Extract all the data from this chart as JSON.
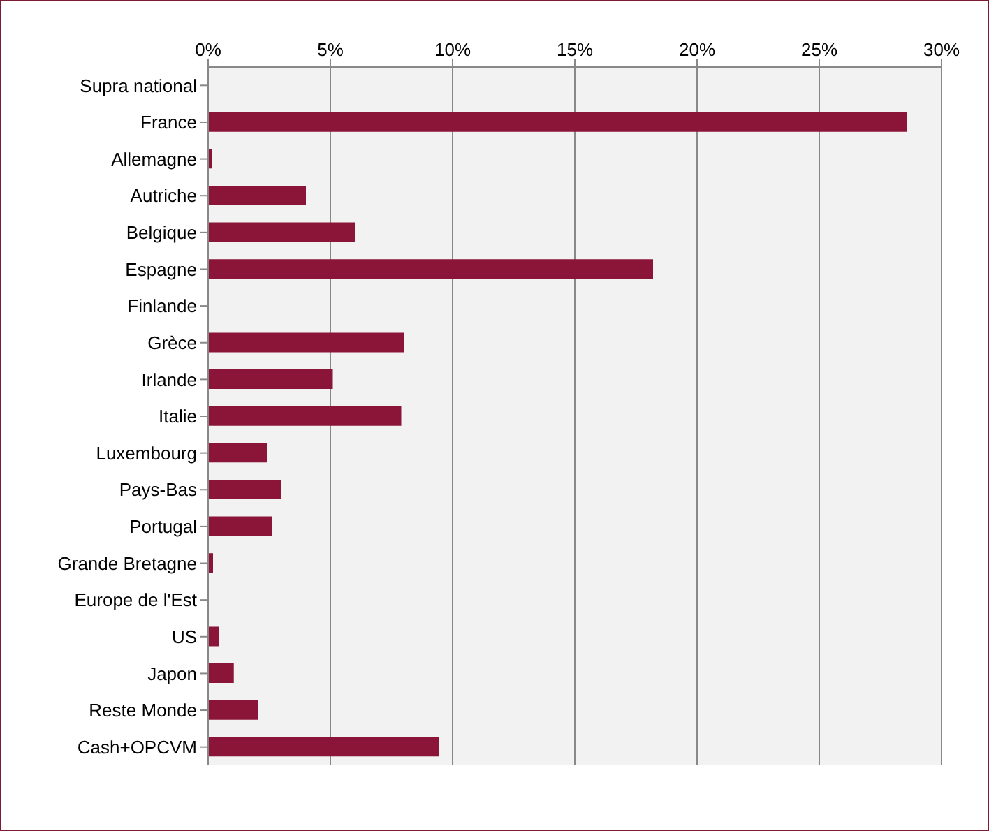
{
  "chart_data": {
    "type": "bar",
    "orientation": "horizontal",
    "categories": [
      "Supra national",
      "France",
      "Allemagne",
      "Autriche",
      "Belgique",
      "Espagne",
      "Finlande",
      "Grèce",
      "Irlande",
      "Italie",
      "Luxembourg",
      "Pays-Bas",
      "Portugal",
      "Grande Bretagne",
      "Europe de l'Est",
      "US",
      "Japon",
      "Reste Monde",
      "Cash+OPCVM"
    ],
    "values": [
      0,
      28.6,
      0.15,
      4.0,
      6.0,
      18.2,
      0,
      8.0,
      5.1,
      7.9,
      2.4,
      3.0,
      2.6,
      0.2,
      0,
      0.45,
      1.05,
      2.05,
      9.45
    ],
    "color": "#8b1538",
    "xlim": [
      0,
      30
    ],
    "xticks": [
      {
        "value": 0,
        "label": "0%"
      },
      {
        "value": 5,
        "label": "5%"
      },
      {
        "value": 10,
        "label": "10%"
      },
      {
        "value": 15,
        "label": "15%"
      },
      {
        "value": 20,
        "label": "20%"
      },
      {
        "value": 25,
        "label": "25%"
      },
      {
        "value": 30,
        "label": "30%"
      }
    ],
    "grid": "x"
  }
}
